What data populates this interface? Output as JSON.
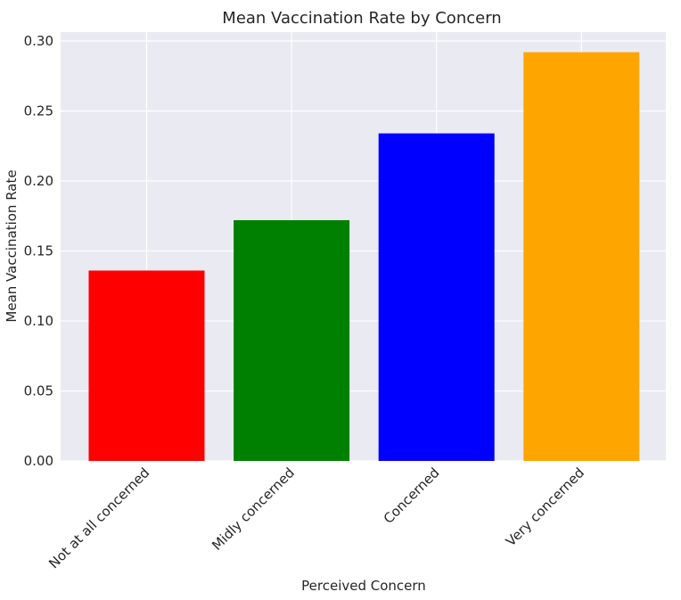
{
  "chart_data": {
    "type": "bar",
    "title": "Mean Vaccination Rate by Concern",
    "xlabel": "Perceived Concern",
    "ylabel": "Mean Vaccination Rate",
    "categories": [
      "Not at all concerned",
      "Midly concerned",
      "Concerned",
      "Very concerned"
    ],
    "values": [
      0.136,
      0.172,
      0.234,
      0.292
    ],
    "bar_colors": [
      "#ff0000",
      "#008000",
      "#0000ff",
      "#ffa500"
    ],
    "ylim": [
      0,
      0.3
    ],
    "yticks": [
      "0.00",
      "0.05",
      "0.10",
      "0.15",
      "0.20",
      "0.25",
      "0.30"
    ],
    "grid": true,
    "background": "#eaeaf2",
    "grid_color": "#ffffff"
  }
}
